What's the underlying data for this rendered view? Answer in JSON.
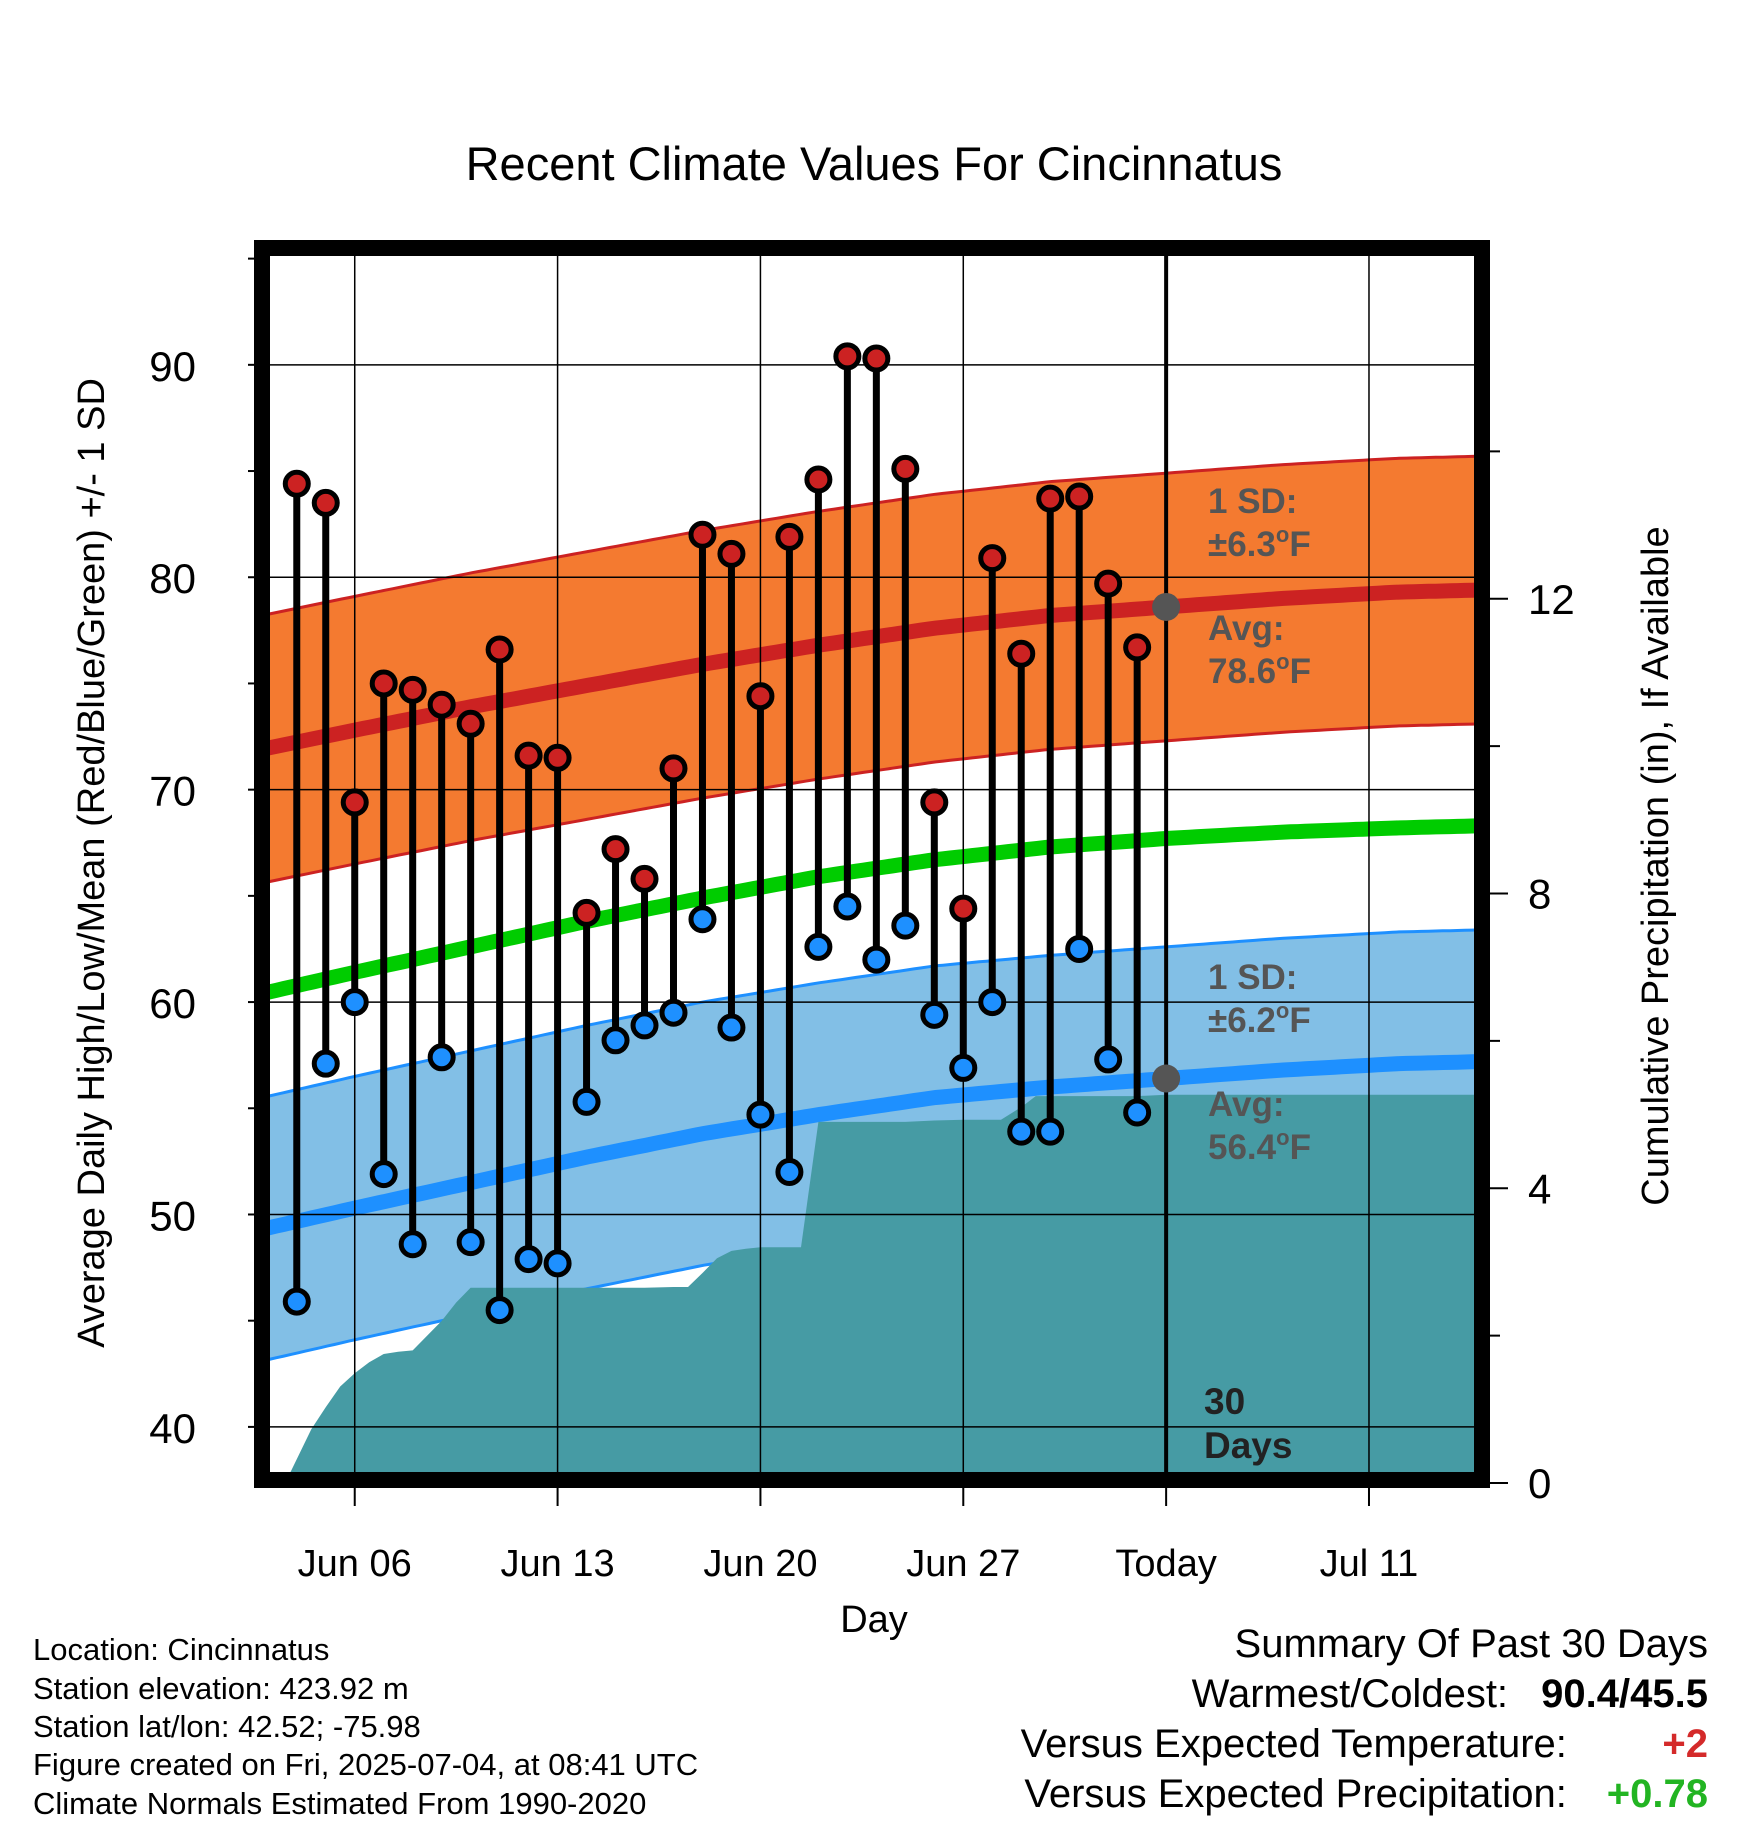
{
  "chart_data": {
    "type": "line",
    "title": "Recent Climate Values For Cincinnatus",
    "xlabel": "Day",
    "ylabel": "Average Daily High/Low/Mean (Red/Blue/Green) +/- 1 SD",
    "y2label": "Cumulative Precipitation (in), If Available",
    "ylim": [
      37.5,
      95.5
    ],
    "y2lim": [
      0,
      16
    ],
    "xlim": [
      -31.2,
      10.9
    ],
    "x_ticks": [
      {
        "label": "Jun 06",
        "x": -28
      },
      {
        "label": "Jun 13",
        "x": -21
      },
      {
        "label": "Jun 20",
        "x": -14
      },
      {
        "label": "Jun 27",
        "x": -7
      },
      {
        "label": "Today",
        "x": 0
      },
      {
        "label": "Jul 11",
        "x": 7
      }
    ],
    "y_ticks": [
      40,
      50,
      60,
      70,
      80,
      90
    ],
    "y2_ticks": [
      0,
      4,
      8,
      12
    ],
    "grid": true,
    "series": [
      {
        "name": "High",
        "color": "#cc2222",
        "x": [
          -30,
          -29,
          -28,
          -27,
          -26,
          -25,
          -24,
          -23,
          -22,
          -21,
          -20,
          -19,
          -18,
          -17,
          -16,
          -15,
          -14,
          -13,
          -12,
          -11,
          -10,
          -9,
          -8,
          -7,
          -6,
          -5,
          -4,
          -3,
          -2,
          -1
        ],
        "values": [
          84.4,
          83.5,
          69.4,
          75.0,
          74.7,
          74.0,
          73.1,
          76.6,
          71.6,
          71.5,
          64.2,
          67.2,
          65.8,
          71.0,
          82.0,
          81.1,
          74.4,
          81.9,
          84.6,
          90.4,
          90.3,
          85.1,
          69.4,
          64.4,
          80.9,
          76.4,
          83.7,
          83.8,
          79.7,
          76.7
        ]
      },
      {
        "name": "Low",
        "color": "#1e90ff",
        "x": [
          -30,
          -29,
          -28,
          -27,
          -26,
          -25,
          -24,
          -23,
          -22,
          -21,
          -20,
          -19,
          -18,
          -17,
          -16,
          -15,
          -14,
          -13,
          -12,
          -11,
          -10,
          -9,
          -8,
          -7,
          -6,
          -5,
          -4,
          -3,
          -2,
          -1
        ],
        "values": [
          45.9,
          57.1,
          60.0,
          51.9,
          48.6,
          57.4,
          48.7,
          45.5,
          47.9,
          47.7,
          55.3,
          58.2,
          58.9,
          59.5,
          63.9,
          58.8,
          54.7,
          52.0,
          62.6,
          64.5,
          62.0,
          63.6,
          59.4,
          56.9,
          60.0,
          53.9,
          53.9,
          62.5,
          57.3,
          54.8
        ]
      },
      {
        "name": "Normal High",
        "color": "#cc2222",
        "x": [
          -31.2,
          -28,
          -24,
          -20,
          -16,
          -12,
          -8,
          -4,
          0,
          4,
          8,
          10.9
        ],
        "values": [
          71.9,
          72.8,
          73.9,
          74.9,
          75.9,
          76.8,
          77.6,
          78.2,
          78.6,
          79.0,
          79.3,
          79.4
        ]
      },
      {
        "name": "Normal Mean",
        "color": "#00cc00",
        "x": [
          -31.2,
          -28,
          -24,
          -20,
          -16,
          -12,
          -8,
          -4,
          0,
          4,
          8,
          10.9
        ],
        "values": [
          60.4,
          61.4,
          62.6,
          63.8,
          64.9,
          65.9,
          66.7,
          67.3,
          67.7,
          68.0,
          68.2,
          68.3
        ]
      },
      {
        "name": "Normal Low",
        "color": "#1e90ff",
        "x": [
          -31.2,
          -28,
          -24,
          -20,
          -16,
          -12,
          -8,
          -4,
          0,
          4,
          8,
          10.9
        ],
        "values": [
          49.3,
          50.3,
          51.5,
          52.7,
          53.8,
          54.7,
          55.5,
          56.0,
          56.4,
          56.8,
          57.1,
          57.2
        ]
      },
      {
        "name": "Cumulative Precipitation",
        "color": "#469ba4",
        "x": [
          -30.4,
          -29.5,
          -29,
          -28.5,
          -28,
          -27.5,
          -27,
          -26.5,
          -26,
          -25.5,
          -25,
          -24.5,
          -24,
          -23,
          -22,
          -21,
          -20,
          -19,
          -18,
          -17,
          -16.5,
          -16,
          -15.5,
          -15,
          -14.5,
          -14,
          -13.5,
          -13,
          -12.6,
          -12,
          -11,
          -10,
          -9,
          -8,
          -7,
          -6,
          -5.7,
          -5,
          -4.5,
          -4,
          -3,
          -2,
          -1,
          0,
          1,
          2,
          3,
          4,
          5,
          6,
          7,
          8,
          9,
          10,
          10.9
        ],
        "values": [
          0,
          0.73,
          1.03,
          1.31,
          1.49,
          1.64,
          1.75,
          1.78,
          1.8,
          2.0,
          2.2,
          2.45,
          2.65,
          2.65,
          2.65,
          2.65,
          2.65,
          2.65,
          2.65,
          2.66,
          2.66,
          2.85,
          3.05,
          3.15,
          3.18,
          3.2,
          3.2,
          3.2,
          3.2,
          4.9,
          4.9,
          4.9,
          4.9,
          4.92,
          4.93,
          4.93,
          4.93,
          5.1,
          5.25,
          5.25,
          5.25,
          5.25,
          5.25,
          5.27,
          5.27,
          5.27,
          5.27,
          5.27,
          5.27,
          5.27,
          5.27,
          5.27,
          5.27,
          5.27,
          5.27
        ]
      }
    ],
    "bands": [
      {
        "name": "High +/- 1 SD",
        "color": "#f47a30",
        "sd": 6.3
      },
      {
        "name": "Low +/- 1 SD",
        "color": "#82bfe6",
        "sd": 6.2
      }
    ],
    "annotations": {
      "high_sd_label_1": "1 SD:",
      "high_sd_label_2": "±6.3",
      "high_avg_label_1": "Avg:",
      "high_avg_label_2": "78.6",
      "high_avg_value": 78.6,
      "low_sd_label_1": "1 SD:",
      "low_sd_label_2": "±6.2",
      "low_avg_label_1": "Avg:",
      "low_avg_label_2": "56.4",
      "low_avg_value": 56.4,
      "deg_sup": "o",
      "unit_f": "F",
      "days_label_1": "30",
      "days_label_2": "Days"
    }
  },
  "info": {
    "location": "Location: Cincinnatus",
    "elevation": "Station elevation: 423.92 m",
    "latlon": "Station lat/lon: 42.52; -75.98",
    "created": "Figure created on Fri, 2025-07-04, at 08:41 UTC",
    "normals": "Climate Normals Estimated From 1990-2020"
  },
  "summary": {
    "title": "Summary Of Past 30 Days",
    "warmest_label": "Warmest/Coldest:",
    "warmest_value": "90.4/45.5",
    "temp_label": "Versus Expected Temperature:",
    "temp_value": "+2",
    "temp_color": "#d42a2a",
    "precip_label": "Versus Expected Precipitation:",
    "precip_value": "+0.78",
    "precip_color": "#22b422"
  }
}
